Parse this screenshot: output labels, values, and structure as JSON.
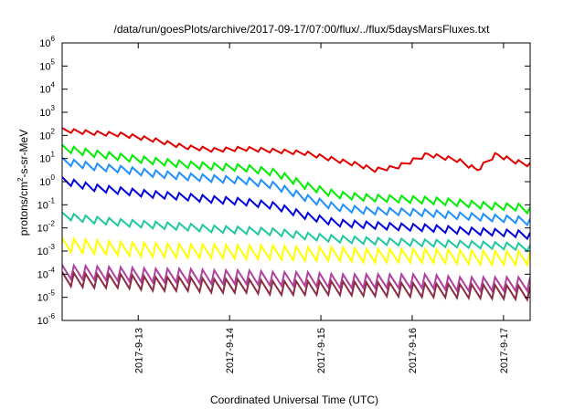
{
  "chart_data": {
    "type": "line",
    "title": "/data/run/goesPlots/archive/2017-09-17/07:00/flux/../flux/5daysMarsFluxes.txt",
    "xlabel": "Coordinated Universal Time (UTC)",
    "ylabel_prefix": "protons/cm",
    "ylabel_sup": "2",
    "ylabel_suffix": "-s-sr-MeV",
    "yscale": "log",
    "ylim": [
      1e-06,
      1000000.0
    ],
    "xlim": [
      "2017-09-12T04:00",
      "2017-09-17T07:00"
    ],
    "grid": false,
    "y_ticks": [
      {
        "base": "10",
        "exp": "-6",
        "value": 1e-06
      },
      {
        "base": "10",
        "exp": "-5",
        "value": 1e-05
      },
      {
        "base": "10",
        "exp": "-4",
        "value": 0.0001
      },
      {
        "base": "10",
        "exp": "-3",
        "value": 0.001
      },
      {
        "base": "10",
        "exp": "-2",
        "value": 0.01
      },
      {
        "base": "10",
        "exp": "-1",
        "value": 0.1
      },
      {
        "base": "10",
        "exp": "0",
        "value": 1
      },
      {
        "base": "10",
        "exp": "1",
        "value": 10
      },
      {
        "base": "10",
        "exp": "2",
        "value": 100
      },
      {
        "base": "10",
        "exp": "3",
        "value": 1000
      },
      {
        "base": "10",
        "exp": "4",
        "value": 10000
      },
      {
        "base": "10",
        "exp": "5",
        "value": 100000
      },
      {
        "base": "10",
        "exp": "6",
        "value": 1000000
      }
    ],
    "x_ticks": [
      {
        "label": "2017-9-13",
        "value": "2017-09-13T00:00"
      },
      {
        "label": "2017-9-14",
        "value": "2017-09-14T00:00"
      },
      {
        "label": "2017-9-15",
        "value": "2017-09-15T00:00"
      },
      {
        "label": "2017-9-16",
        "value": "2017-09-16T00:00"
      },
      {
        "label": "2017-9-17",
        "value": "2017-09-17T00:00"
      }
    ],
    "series": [
      {
        "color": "#e00000",
        "x": [
          "2017-09-12T04:00",
          "2017-09-12T12:00",
          "2017-09-12T20:00",
          "2017-09-13T04:00",
          "2017-09-13T12:00",
          "2017-09-13T20:00",
          "2017-09-14T04:00",
          "2017-09-14T12:00",
          "2017-09-14T20:00",
          "2017-09-15T04:00",
          "2017-09-15T10:00",
          "2017-09-15T14:00",
          "2017-09-15T20:00",
          "2017-09-16T04:00",
          "2017-09-16T12:00",
          "2017-09-16T17:00",
          "2017-09-16T22:00",
          "2017-09-17T03:00",
          "2017-09-17T07:00"
        ],
        "y": [
          160,
          120,
          100,
          60,
          30,
          22,
          25,
          20,
          16,
          8,
          5,
          3,
          4,
          14,
          8,
          3,
          14,
          7,
          5
        ]
      },
      {
        "color": "#00ee00",
        "x": [
          "2017-09-12T04:00",
          "2017-09-12T12:00",
          "2017-09-12T20:00",
          "2017-09-13T04:00",
          "2017-09-13T12:00",
          "2017-09-13T20:00",
          "2017-09-14T04:00",
          "2017-09-14T12:00",
          "2017-09-14T20:00",
          "2017-09-15T04:00",
          "2017-09-15T12:00",
          "2017-09-15T20:00",
          "2017-09-16T04:00",
          "2017-09-16T12:00",
          "2017-09-16T20:00",
          "2017-09-17T04:00",
          "2017-09-17T07:00"
        ],
        "y": [
          25,
          15,
          10,
          7,
          5,
          4,
          3.5,
          2.2,
          0.6,
          0.25,
          0.18,
          0.16,
          0.14,
          0.11,
          0.08,
          0.07,
          0.05
        ]
      },
      {
        "color": "#1e90ff",
        "x": [
          "2017-09-12T04:00",
          "2017-09-12T12:00",
          "2017-09-12T20:00",
          "2017-09-13T04:00",
          "2017-09-13T12:00",
          "2017-09-13T20:00",
          "2017-09-14T04:00",
          "2017-09-14T12:00",
          "2017-09-14T20:00",
          "2017-09-15T04:00",
          "2017-09-15T12:00",
          "2017-09-15T20:00",
          "2017-09-16T04:00",
          "2017-09-16T12:00",
          "2017-09-16T20:00",
          "2017-09-17T04:00",
          "2017-09-17T07:00"
        ],
        "y": [
          7,
          4,
          3,
          2,
          1.5,
          1.2,
          1,
          0.6,
          0.18,
          0.07,
          0.05,
          0.045,
          0.04,
          0.03,
          0.025,
          0.02,
          0.016
        ]
      },
      {
        "color": "#0000dd",
        "x": [
          "2017-09-12T04:00",
          "2017-09-12T12:00",
          "2017-09-12T20:00",
          "2017-09-13T04:00",
          "2017-09-13T12:00",
          "2017-09-13T20:00",
          "2017-09-14T04:00",
          "2017-09-14T12:00",
          "2017-09-14T20:00",
          "2017-09-15T04:00",
          "2017-09-15T12:00",
          "2017-09-15T20:00",
          "2017-09-16T04:00",
          "2017-09-16T12:00",
          "2017-09-16T20:00",
          "2017-09-17T04:00",
          "2017-09-17T07:00"
        ],
        "y": [
          1,
          0.5,
          0.35,
          0.25,
          0.2,
          0.15,
          0.12,
          0.08,
          0.03,
          0.015,
          0.012,
          0.01,
          0.009,
          0.007,
          0.006,
          0.005,
          0.004
        ]
      },
      {
        "color": "#20c8a0",
        "x": [
          "2017-09-12T04:00",
          "2017-09-12T12:00",
          "2017-09-12T20:00",
          "2017-09-13T04:00",
          "2017-09-13T12:00",
          "2017-09-13T20:00",
          "2017-09-14T04:00",
          "2017-09-14T12:00",
          "2017-09-14T20:00",
          "2017-09-15T04:00",
          "2017-09-15T12:00",
          "2017-09-15T20:00",
          "2017-09-16T04:00",
          "2017-09-16T12:00",
          "2017-09-16T20:00",
          "2017-09-17T04:00",
          "2017-09-17T07:00"
        ],
        "y": [
          0.03,
          0.02,
          0.015,
          0.012,
          0.01,
          0.008,
          0.007,
          0.006,
          0.004,
          0.003,
          0.0025,
          0.0022,
          0.002,
          0.0018,
          0.0016,
          0.0014,
          0.0012
        ]
      },
      {
        "color": "#ffff00",
        "x": [
          "2017-09-12T04:00",
          "2017-09-12T12:00",
          "2017-09-12T20:00",
          "2017-09-13T04:00",
          "2017-09-13T12:00",
          "2017-09-13T20:00",
          "2017-09-14T04:00",
          "2017-09-14T12:00",
          "2017-09-14T20:00",
          "2017-09-15T04:00",
          "2017-09-15T12:00",
          "2017-09-15T20:00",
          "2017-09-16T04:00",
          "2017-09-16T12:00",
          "2017-09-16T20:00",
          "2017-09-17T04:00",
          "2017-09-17T07:00"
        ],
        "y": [
          0.0015,
          0.0012,
          0.001,
          0.0009,
          0.0008,
          0.0008,
          0.0007,
          0.0007,
          0.0006,
          0.0006,
          0.0005,
          0.0005,
          0.0005,
          0.00045,
          0.0004,
          0.0004,
          0.0004
        ]
      },
      {
        "color": "#b040a0",
        "x": [
          "2017-09-12T04:00",
          "2017-09-12T12:00",
          "2017-09-12T20:00",
          "2017-09-13T04:00",
          "2017-09-13T12:00",
          "2017-09-13T20:00",
          "2017-09-14T04:00",
          "2017-09-14T12:00",
          "2017-09-14T20:00",
          "2017-09-15T04:00",
          "2017-09-15T12:00",
          "2017-09-15T20:00",
          "2017-09-16T04:00",
          "2017-09-16T12:00",
          "2017-09-16T20:00",
          "2017-09-17T04:00",
          "2017-09-17T07:00"
        ],
        "y": [
          0.0001,
          9e-05,
          8e-05,
          7e-05,
          7e-05,
          6e-05,
          6e-05,
          5e-05,
          5e-05,
          4e-05,
          4e-05,
          4e-05,
          4e-05,
          3e-05,
          3e-05,
          3e-05,
          3e-05
        ]
      },
      {
        "color": "#8b2c40",
        "x": [
          "2017-09-12T04:00",
          "2017-09-12T12:00",
          "2017-09-12T20:00",
          "2017-09-13T04:00",
          "2017-09-13T12:00",
          "2017-09-13T20:00",
          "2017-09-14T04:00",
          "2017-09-14T12:00",
          "2017-09-14T20:00",
          "2017-09-15T04:00",
          "2017-09-15T12:00",
          "2017-09-15T20:00",
          "2017-09-16T04:00",
          "2017-09-16T12:00",
          "2017-09-16T20:00",
          "2017-09-17T04:00",
          "2017-09-17T07:00"
        ],
        "y": [
          5e-05,
          4e-05,
          4e-05,
          3e-05,
          3e-05,
          2.5e-05,
          2.5e-05,
          2e-05,
          2e-05,
          2e-05,
          1.8e-05,
          1.7e-05,
          1.6e-05,
          1.5e-05,
          1.4e-05,
          1.3e-05,
          1.2e-05
        ]
      }
    ]
  }
}
